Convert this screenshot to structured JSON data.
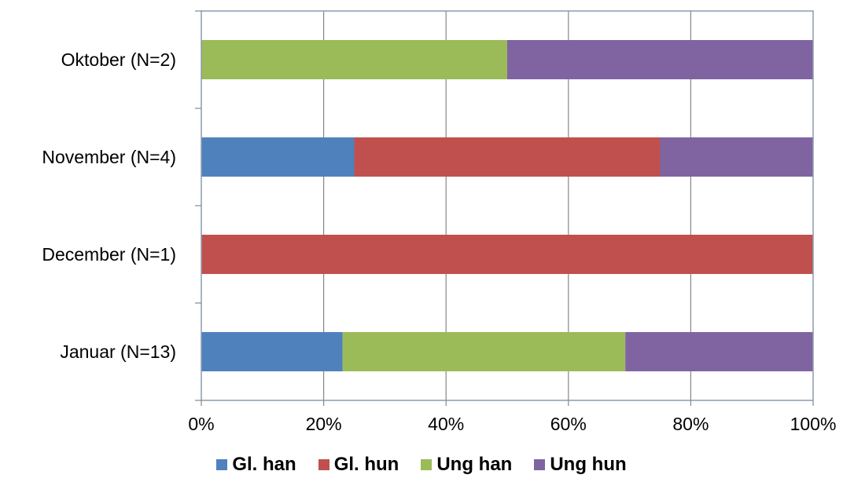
{
  "chart_data": {
    "type": "bar",
    "orientation": "horizontal",
    "stacked": "percent",
    "categories": [
      "Januar (N=13)",
      "December (N=1)",
      "November (N=4)",
      "Oktober (N=2)"
    ],
    "series": [
      {
        "name": "Gl. han",
        "color": "#4F81BD",
        "values": [
          23.1,
          0,
          25,
          0
        ]
      },
      {
        "name": "Gl. hun",
        "color": "#C0504D",
        "values": [
          0,
          100,
          50,
          0
        ]
      },
      {
        "name": "Ung han",
        "color": "#9BBB59",
        "values": [
          46.2,
          0,
          0,
          50
        ]
      },
      {
        "name": "Ung hun",
        "color": "#8064A2",
        "values": [
          30.7,
          0,
          25,
          50
        ]
      }
    ],
    "xlim": [
      0,
      100
    ],
    "xticks": [
      "0%",
      "20%",
      "40%",
      "60%",
      "80%",
      "100%"
    ],
    "grid": "vertical",
    "legend_position": "bottom",
    "title": "",
    "xlabel": "",
    "ylabel": ""
  }
}
